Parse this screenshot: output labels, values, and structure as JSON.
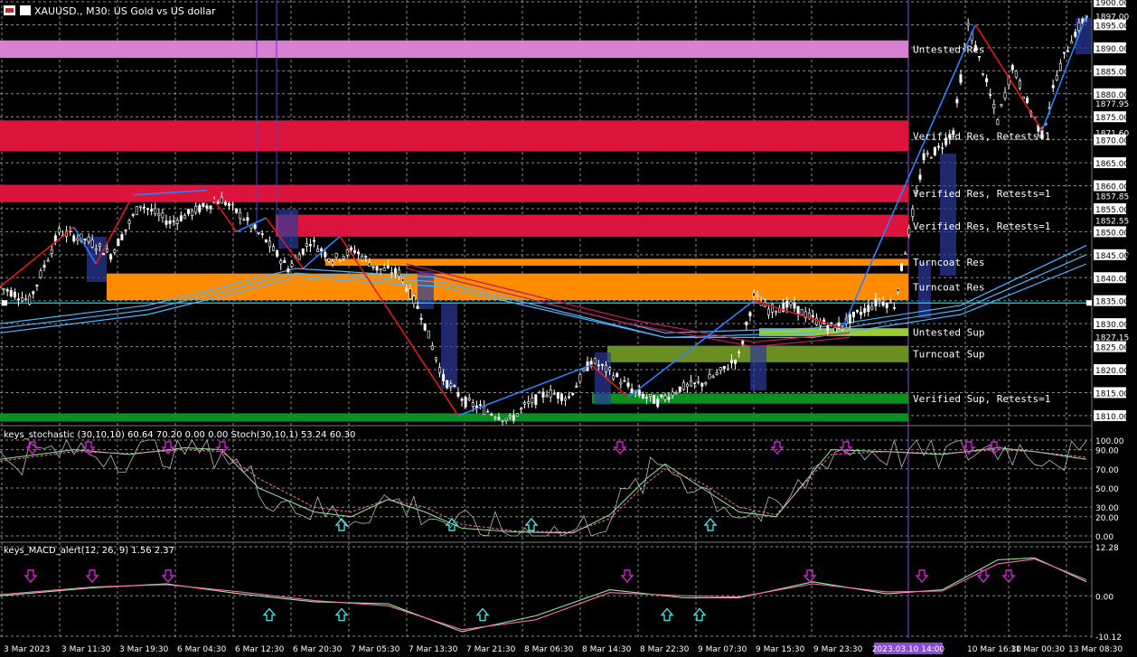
{
  "header": {
    "symbol_label": "XAUUSD., M30:  US Gold vs US dollar"
  },
  "colors": {
    "background": "#000000",
    "grid": "#8a8a8a",
    "candle": "#ffffff",
    "zigzag_red": "#e01a1a",
    "zigzag_blue": "#2d7fff",
    "ma_blue": "#49b6ff",
    "ma_red": "#c2185b",
    "zone_untested_res": "#d980d2",
    "zone_verified_res": "#dc143c",
    "zone_turncoat_res": "#ff8c00",
    "zone_untested_sup": "#9acd32",
    "zone_turncoat_sup": "#6b8e23",
    "zone_verified_sup": "#0a8f22",
    "price_line": "#00e5ff",
    "stoch_main": "#90ee90",
    "stoch_signal": "#ff69b4",
    "macd_main": "#90ee90",
    "macd_signal": "#ff69b4",
    "arrow_down": "#d020d0",
    "arrow_up": "#40e0e0"
  },
  "chart_data": [
    {
      "type": "candlestick",
      "symbol": "XAUUSD.",
      "timeframe": "M30",
      "ylim": [
        1808.6,
        1900.0
      ],
      "yticks": [
        "1900.00",
        "1897.00",
        "1895.00",
        "1890.00",
        "1885.00",
        "1880.00",
        "1877.95",
        "1875.00",
        "1871.60",
        "1870.00",
        "1865.00",
        "1860.00",
        "1857.85",
        "1855.00",
        "1852.55",
        "1850.00",
        "1845.20",
        "1845.00",
        "1840.00",
        "1835.00",
        "1830.00",
        "1827.15",
        "1825.00",
        "1820.00",
        "1815.00",
        "1810.00"
      ],
      "xticks": [
        "3 Mar 2023",
        "3 Mar 11:30",
        "3 Mar 19:30",
        "6 Mar 04:30",
        "6 Mar 12:30",
        "6 Mar 20:30",
        "7 Mar 05:30",
        "7 Mar 13:30",
        "7 Mar 21:30",
        "8 Mar 06:30",
        "8 Mar 14:30",
        "8 Mar 22:30",
        "9 Mar 07:30",
        "9 Mar 15:30",
        "9 Mar 23:30",
        "2023.03.10 14:00",
        "10 Mar 16:30",
        "11 Mar 00:30",
        "13 Mar 08:30"
      ],
      "crosshair_time": "2023.03.10 14:00",
      "current_price": 1834.5,
      "zones": [
        {
          "label": "Untested Res",
          "low": 1887.8,
          "high": 1891.6,
          "kind": "untested_res"
        },
        {
          "label": "Verified Res, Retests=1",
          "low": 1867.5,
          "high": 1874.2,
          "kind": "verified_res"
        },
        {
          "label": "Verified Res, Retests=1",
          "low": 1856.4,
          "high": 1860.2,
          "kind": "verified_res"
        },
        {
          "label": "Verified Res, Retests=1",
          "low": 1848.9,
          "high": 1853.7,
          "kind": "verified_res"
        },
        {
          "label": "Turncoat Res",
          "low": 1842.6,
          "high": 1844.1,
          "kind": "turncoat_res"
        },
        {
          "label": "Turncoat Res",
          "low": 1835.1,
          "high": 1840.9,
          "kind": "turncoat_res"
        },
        {
          "label": "Untested Sup",
          "low": 1827.3,
          "high": 1829.0,
          "kind": "untested_sup"
        },
        {
          "label": "Turncoat Sup",
          "low": 1821.6,
          "high": 1825.2,
          "kind": "turncoat_sup"
        },
        {
          "label": "Verified Sup, Retests=1",
          "low": 1812.6,
          "high": 1814.8,
          "kind": "verified_sup"
        },
        {
          "label": "",
          "low": 1808.7,
          "high": 1810.5,
          "kind": "verified_sup"
        }
      ],
      "price_path": [
        [
          0,
          1838
        ],
        [
          8,
          1835
        ],
        [
          16,
          1850
        ],
        [
          24,
          1848
        ],
        [
          30,
          1845
        ],
        [
          38,
          1856
        ],
        [
          46,
          1852
        ],
        [
          54,
          1855
        ],
        [
          60,
          1857
        ],
        [
          66,
          1853
        ],
        [
          72,
          1848
        ],
        [
          78,
          1842
        ],
        [
          84,
          1848
        ],
        [
          90,
          1844
        ],
        [
          96,
          1846
        ],
        [
          102,
          1842
        ],
        [
          108,
          1841
        ],
        [
          114,
          1832
        ],
        [
          120,
          1818
        ],
        [
          126,
          1813
        ],
        [
          132,
          1811
        ],
        [
          138,
          1809
        ],
        [
          142,
          1812
        ],
        [
          148,
          1815
        ],
        [
          154,
          1814
        ],
        [
          160,
          1822
        ],
        [
          166,
          1819
        ],
        [
          172,
          1815
        ],
        [
          178,
          1813
        ],
        [
          184,
          1816
        ],
        [
          190,
          1817
        ],
        [
          196,
          1820
        ],
        [
          200,
          1823
        ],
        [
          204,
          1836
        ],
        [
          208,
          1833
        ],
        [
          214,
          1834
        ],
        [
          220,
          1831
        ],
        [
          226,
          1829
        ],
        [
          232,
          1832
        ],
        [
          238,
          1835
        ],
        [
          242,
          1834
        ],
        [
          246,
          1850
        ],
        [
          250,
          1866
        ],
        [
          254,
          1868
        ],
        [
          258,
          1872
        ],
        [
          262,
          1895
        ],
        [
          266,
          1885
        ],
        [
          270,
          1874
        ],
        [
          274,
          1886
        ],
        [
          278,
          1878
        ],
        [
          282,
          1871
        ],
        [
          286,
          1884
        ],
        [
          290,
          1892
        ],
        [
          294,
          1897
        ]
      ],
      "zigzag": [
        [
          0,
          1838,
          "r"
        ],
        [
          20,
          1851,
          "b"
        ],
        [
          26,
          1843,
          "r"
        ],
        [
          36,
          1858,
          "b"
        ],
        [
          56,
          1859,
          "r"
        ],
        [
          64,
          1850,
          "b"
        ],
        [
          72,
          1853,
          "r"
        ],
        [
          82,
          1842,
          "b"
        ],
        [
          92,
          1849,
          "r"
        ],
        [
          124,
          1810,
          "b"
        ],
        [
          160,
          1821,
          "r"
        ],
        [
          170,
          1814,
          "b"
        ],
        [
          204,
          1835,
          "r"
        ],
        [
          228,
          1829,
          "b"
        ],
        [
          264,
          1895,
          "r"
        ],
        [
          282,
          1872,
          "b"
        ],
        [
          294,
          1897,
          "r"
        ]
      ],
      "moving_averages": [
        {
          "color": "ma_blue",
          "points": [
            [
              0,
              1830
            ],
            [
              40,
              1834
            ],
            [
              80,
              1842
            ],
            [
              120,
              1840
            ],
            [
              180,
              1828
            ],
            [
              220,
              1829
            ],
            [
              260,
              1834
            ],
            [
              294,
              1847
            ]
          ]
        },
        {
          "color": "ma_blue",
          "points": [
            [
              0,
              1829
            ],
            [
              40,
              1833
            ],
            [
              80,
              1841
            ],
            [
              120,
              1839
            ],
            [
              180,
              1827
            ],
            [
              220,
              1828
            ],
            [
              260,
              1833
            ],
            [
              294,
              1845
            ]
          ]
        },
        {
          "color": "ma_blue",
          "points": [
            [
              0,
              1828
            ],
            [
              40,
              1832
            ],
            [
              80,
              1840
            ],
            [
              120,
              1838
            ],
            [
              180,
              1827
            ],
            [
              220,
              1827
            ],
            [
              260,
              1832
            ],
            [
              294,
              1843
            ]
          ]
        },
        {
          "color": "ma_red",
          "points": [
            [
              110,
              1843
            ],
            [
              140,
              1837
            ],
            [
              170,
              1831
            ],
            [
              204,
              1826
            ],
            [
              230,
              1828
            ]
          ]
        },
        {
          "color": "ma_red",
          "points": [
            [
              110,
              1842
            ],
            [
              140,
              1836
            ],
            [
              170,
              1830
            ],
            [
              204,
              1825
            ],
            [
              230,
              1827
            ]
          ]
        }
      ]
    },
    {
      "type": "line",
      "title": "keys_stochastic (30,10,10) 60.64 70.20 0.00 0.00 Stoch(30,10,1) 53.24 60.30",
      "ylim": [
        0,
        100
      ],
      "yticks": [
        "100.00",
        "90.00",
        "70.00",
        "50.00",
        "30.00",
        "20.00",
        "0.00"
      ],
      "series": [
        {
          "color": "stoch_main",
          "values": [
            [
              0,
              80
            ],
            [
              20,
              90
            ],
            [
              35,
              85
            ],
            [
              50,
              92
            ],
            [
              60,
              90
            ],
            [
              70,
              50
            ],
            [
              85,
              25
            ],
            [
              95,
              20
            ],
            [
              105,
              38
            ],
            [
              115,
              25
            ],
            [
              125,
              8
            ],
            [
              140,
              4
            ],
            [
              155,
              3
            ],
            [
              165,
              22
            ],
            [
              175,
              60
            ],
            [
              180,
              75
            ],
            [
              190,
              50
            ],
            [
              200,
              25
            ],
            [
              210,
              20
            ],
            [
              225,
              90
            ],
            [
              240,
              88
            ],
            [
              255,
              85
            ],
            [
              270,
              92
            ],
            [
              280,
              88
            ],
            [
              294,
              80
            ]
          ]
        },
        {
          "color": "stoch_signal",
          "values": [
            [
              0,
              78
            ],
            [
              20,
              88
            ],
            [
              35,
              86
            ],
            [
              50,
              90
            ],
            [
              60,
              88
            ],
            [
              70,
              60
            ],
            [
              85,
              30
            ],
            [
              95,
              25
            ],
            [
              105,
              38
            ],
            [
              115,
              30
            ],
            [
              125,
              12
            ],
            [
              140,
              5
            ],
            [
              155,
              4
            ],
            [
              165,
              18
            ],
            [
              175,
              55
            ],
            [
              180,
              70
            ],
            [
              190,
              55
            ],
            [
              200,
              30
            ],
            [
              210,
              22
            ],
            [
              225,
              85
            ],
            [
              240,
              88
            ],
            [
              255,
              86
            ],
            [
              270,
              90
            ],
            [
              280,
              88
            ],
            [
              294,
              82
            ]
          ]
        }
      ]
    },
    {
      "type": "line",
      "title": "keys_MACD_alert(12, 26, 9) 1.56 2.37",
      "ylim": [
        -10.12,
        12.28
      ],
      "yticks": [
        "12.28",
        "0.00",
        "-10.12"
      ],
      "series": [
        {
          "color": "macd_main",
          "values": [
            [
              0,
              0
            ],
            [
              25,
              2
            ],
            [
              45,
              3
            ],
            [
              65,
              0.5
            ],
            [
              85,
              -1.5
            ],
            [
              105,
              -2
            ],
            [
              125,
              -9
            ],
            [
              145,
              -5
            ],
            [
              165,
              1.5
            ],
            [
              185,
              -0.5
            ],
            [
              200,
              -0.5
            ],
            [
              220,
              3.5
            ],
            [
              240,
              0.5
            ],
            [
              255,
              1.5
            ],
            [
              270,
              9
            ],
            [
              280,
              9.5
            ],
            [
              294,
              3.5
            ]
          ]
        },
        {
          "color": "macd_signal",
          "values": [
            [
              0,
              0.3
            ],
            [
              25,
              2.2
            ],
            [
              45,
              2.8
            ],
            [
              65,
              1
            ],
            [
              85,
              -1.2
            ],
            [
              105,
              -2.5
            ],
            [
              125,
              -8.5
            ],
            [
              145,
              -6
            ],
            [
              165,
              0.8
            ],
            [
              185,
              0
            ],
            [
              200,
              -0.3
            ],
            [
              220,
              3
            ],
            [
              240,
              1
            ],
            [
              255,
              1.2
            ],
            [
              270,
              8
            ],
            [
              280,
              9.2
            ],
            [
              294,
              4
            ]
          ]
        }
      ]
    }
  ]
}
